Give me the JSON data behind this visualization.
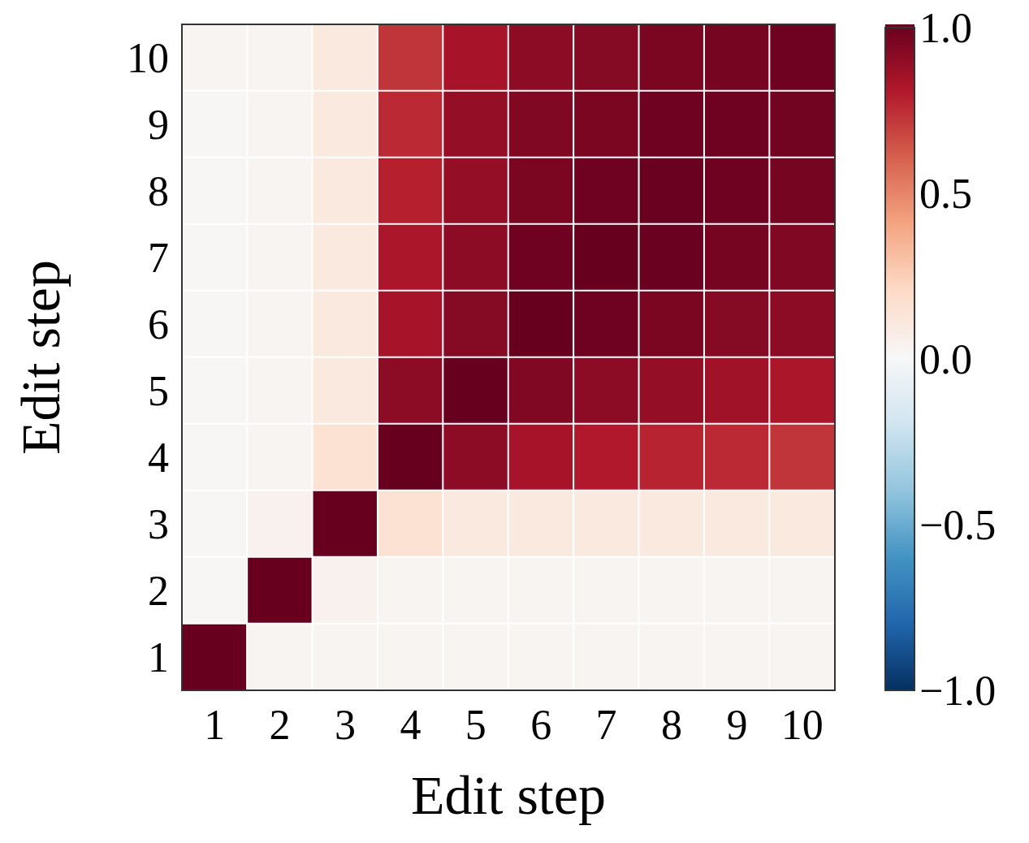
{
  "chart_data": {
    "type": "heatmap",
    "xlabel": "Edit step",
    "ylabel": "Edit step",
    "categories": [
      "1",
      "2",
      "3",
      "4",
      "5",
      "6",
      "7",
      "8",
      "9",
      "10"
    ],
    "y_categories": [
      "10",
      "9",
      "8",
      "7",
      "6",
      "5",
      "4",
      "3",
      "2",
      "1"
    ],
    "cells": [
      [
        0.02,
        0.02,
        0.1,
        0.72,
        0.83,
        0.9,
        0.92,
        0.95,
        0.96,
        0.98
      ],
      [
        0.01,
        0.02,
        0.1,
        0.75,
        0.88,
        0.93,
        0.95,
        0.98,
        0.98,
        0.97
      ],
      [
        0.01,
        0.02,
        0.1,
        0.78,
        0.88,
        0.95,
        0.98,
        0.99,
        0.98,
        0.96
      ],
      [
        0.01,
        0.02,
        0.1,
        0.82,
        0.9,
        0.98,
        1.0,
        0.99,
        0.96,
        0.93
      ],
      [
        0.01,
        0.02,
        0.1,
        0.83,
        0.92,
        1.0,
        0.98,
        0.95,
        0.92,
        0.9
      ],
      [
        0.01,
        0.02,
        0.1,
        0.9,
        1.0,
        0.93,
        0.9,
        0.88,
        0.85,
        0.82
      ],
      [
        0.01,
        0.02,
        0.15,
        1.0,
        0.9,
        0.83,
        0.8,
        0.77,
        0.75,
        0.72
      ],
      [
        0.01,
        0.04,
        1.0,
        0.15,
        0.1,
        0.1,
        0.1,
        0.1,
        0.1,
        0.1
      ],
      [
        0.01,
        1.0,
        0.04,
        0.02,
        0.02,
        0.02,
        0.02,
        0.02,
        0.02,
        0.02
      ],
      [
        1.0,
        0.02,
        0.02,
        0.02,
        0.02,
        0.02,
        0.02,
        0.02,
        0.02,
        0.02
      ]
    ],
    "clim": [
      -1,
      1
    ],
    "cticks": [
      {
        "value": 1,
        "label": "1.0"
      },
      {
        "value": 0.5,
        "label": "0.5"
      },
      {
        "value": 0,
        "label": "0.0"
      },
      {
        "value": -0.5,
        "label": "−0.5"
      },
      {
        "value": -1,
        "label": "−1.0"
      }
    ]
  }
}
